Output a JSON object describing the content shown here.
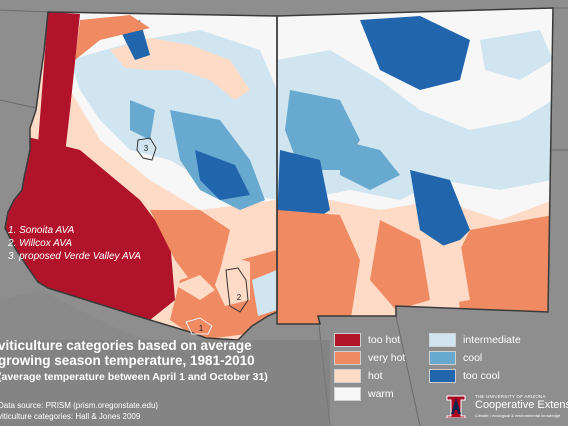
{
  "map": {
    "ava_labels": [
      "1. Sonoita AVA",
      "2. Willcox AVA",
      "3. proposed Verde Valley AVA"
    ],
    "ava_markers": [
      "1",
      "2",
      "3"
    ]
  },
  "title": {
    "line1": "viticulture categories based on average",
    "line2": "growing season temperature, 1981-2010",
    "subtitle": "(average temperature between April 1 and October 31)"
  },
  "sources": {
    "data_source": "Data source: PRISM (prism.oregonstate.edu)",
    "categories": "viticulture categories: Hall & Jones 2009"
  },
  "legend": {
    "items": [
      {
        "label": "too hot",
        "color": "#b1132b"
      },
      {
        "label": "very hot",
        "color": "#ef8a62"
      },
      {
        "label": "hot",
        "color": "#fddbc7"
      },
      {
        "label": "warm",
        "color": "#f7f7f7"
      },
      {
        "label": "intermediate",
        "color": "#d1e5f0"
      },
      {
        "label": "cool",
        "color": "#67a9cf"
      },
      {
        "label": "too cool",
        "color": "#2166ac"
      }
    ]
  },
  "logo": {
    "university": "THE UNIVERSITY OF ARIZONA",
    "name": "Cooperative Extension",
    "tagline": "Climate • ecological & environmental knowledge"
  },
  "colors": {
    "background": "#8d8d8d",
    "state_border": "#3a3a3a",
    "logo_red": "#ab0520",
    "logo_blue": "#0c234b"
  }
}
